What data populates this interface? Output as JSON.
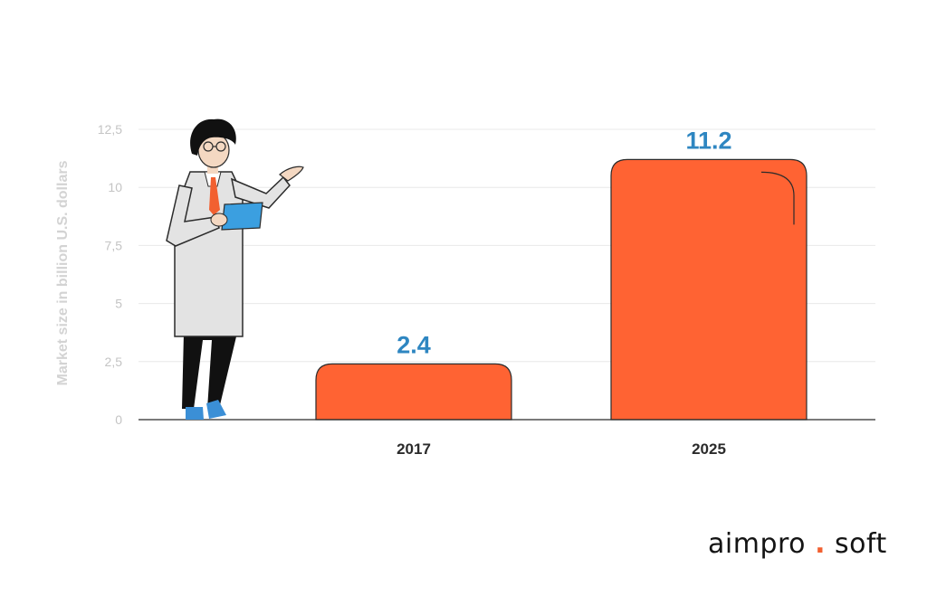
{
  "chart_data": {
    "type": "bar",
    "ylabel": "Market size in billion U.S. dollars",
    "categories": [
      "2017",
      "2025"
    ],
    "values": [
      2.4,
      11.2
    ],
    "data_labels": [
      "2.4",
      "11.2"
    ],
    "yticks": [
      "0",
      "2,5",
      "5",
      "7,5",
      "10",
      "12,5"
    ],
    "ytick_values": [
      0,
      2.5,
      5,
      7.5,
      10,
      12.5
    ],
    "ylim": [
      0,
      12.5
    ],
    "grid": true,
    "colors": {
      "bar": "#ff6333",
      "bar_outline": "#2b2b2b",
      "data_label": "#2e86c1"
    }
  },
  "brand": {
    "name": "aimpro",
    "separator": ".",
    "suffix": "soft"
  },
  "illustration": {
    "subject": "scientist-presenting-illustration"
  }
}
